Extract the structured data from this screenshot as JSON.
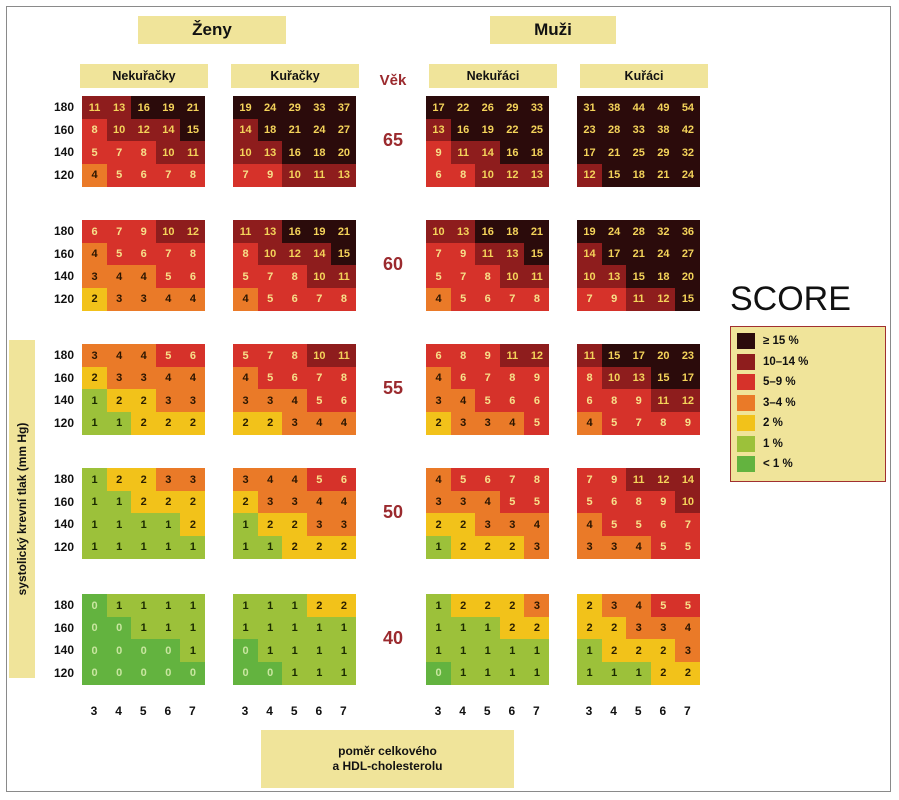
{
  "headers": {
    "women": "Ženy",
    "men": "Muži",
    "women_nonsmoker": "Nekuřačky",
    "women_smoker": "Kuřačky",
    "men_nonsmoker": "Nekuřáci",
    "men_smoker": "Kuřáci",
    "age_label": "Věk"
  },
  "legend": {
    "title": "SCORE",
    "items": [
      {
        "label": "≥ 15 %",
        "color": "#2b0b0b"
      },
      {
        "label": "10–14 %",
        "color": "#8e1d1d"
      },
      {
        "label": "5–9 %",
        "color": "#d6322a"
      },
      {
        "label": "3–4 %",
        "color": "#ea7a28"
      },
      {
        "label": "2 %",
        "color": "#f2c21a"
      },
      {
        "label": "1 %",
        "color": "#9cc13a"
      },
      {
        "label": "< 1 %",
        "color": "#63b33f"
      }
    ]
  },
  "axes": {
    "ylabel": "systolický krevní tlak (mm Hg)",
    "xlabel_line1": "poměr celkového",
    "xlabel_line2": "a HDL-cholesterolu"
  },
  "chart_data": {
    "type": "heatmap",
    "title": "SCORE",
    "x_ticks": [
      "3",
      "4",
      "5",
      "6",
      "7"
    ],
    "y_ticks": [
      "180",
      "160",
      "140",
      "120"
    ],
    "ages": [
      "65",
      "60",
      "55",
      "50",
      "40"
    ],
    "groups": [
      "women_nonsmoker",
      "women_smoker",
      "men_nonsmoker",
      "men_smoker"
    ],
    "values": {
      "65": {
        "women_nonsmoker": [
          [
            11,
            13,
            16,
            19,
            21
          ],
          [
            8,
            10,
            12,
            14,
            15
          ],
          [
            5,
            7,
            8,
            10,
            11
          ],
          [
            4,
            5,
            6,
            7,
            8
          ]
        ],
        "women_smoker": [
          [
            19,
            24,
            29,
            33,
            37
          ],
          [
            14,
            18,
            21,
            24,
            27
          ],
          [
            10,
            13,
            16,
            18,
            20
          ],
          [
            7,
            9,
            10,
            11,
            13
          ]
        ],
        "men_nonsmoker": [
          [
            17,
            22,
            26,
            29,
            33
          ],
          [
            13,
            16,
            19,
            22,
            25
          ],
          [
            9,
            11,
            14,
            16,
            18
          ],
          [
            6,
            8,
            10,
            12,
            13
          ]
        ],
        "men_smoker": [
          [
            31,
            38,
            44,
            49,
            54
          ],
          [
            23,
            28,
            33,
            38,
            42
          ],
          [
            17,
            21,
            25,
            29,
            32
          ],
          [
            12,
            15,
            18,
            21,
            24
          ]
        ]
      },
      "60": {
        "women_nonsmoker": [
          [
            6,
            7,
            9,
            10,
            12
          ],
          [
            4,
            5,
            6,
            7,
            8
          ],
          [
            3,
            4,
            4,
            5,
            6
          ],
          [
            2,
            3,
            3,
            4,
            4
          ]
        ],
        "women_smoker": [
          [
            11,
            13,
            16,
            19,
            21
          ],
          [
            8,
            10,
            12,
            14,
            15
          ],
          [
            5,
            7,
            8,
            10,
            11
          ],
          [
            4,
            5,
            6,
            7,
            8
          ]
        ],
        "men_nonsmoker": [
          [
            10,
            13,
            16,
            18,
            21
          ],
          [
            7,
            9,
            11,
            13,
            15
          ],
          [
            5,
            7,
            8,
            10,
            11
          ],
          [
            4,
            5,
            6,
            7,
            8
          ]
        ],
        "men_smoker": [
          [
            19,
            24,
            28,
            32,
            36
          ],
          [
            14,
            17,
            21,
            24,
            27
          ],
          [
            10,
            13,
            15,
            18,
            20
          ],
          [
            7,
            9,
            11,
            12,
            15
          ]
        ]
      },
      "55": {
        "women_nonsmoker": [
          [
            3,
            4,
            4,
            5,
            6
          ],
          [
            2,
            3,
            3,
            4,
            4
          ],
          [
            1,
            2,
            2,
            3,
            3
          ],
          [
            1,
            1,
            2,
            2,
            2
          ]
        ],
        "women_smoker": [
          [
            5,
            7,
            8,
            10,
            11
          ],
          [
            4,
            5,
            6,
            7,
            8
          ],
          [
            3,
            3,
            4,
            5,
            6
          ],
          [
            2,
            2,
            3,
            4,
            4
          ]
        ],
        "men_nonsmoker": [
          [
            6,
            8,
            9,
            11,
            12
          ],
          [
            4,
            6,
            7,
            8,
            9
          ],
          [
            3,
            4,
            5,
            6,
            6
          ],
          [
            2,
            3,
            3,
            4,
            5
          ]
        ],
        "men_smoker": [
          [
            11,
            15,
            17,
            20,
            23
          ],
          [
            8,
            10,
            13,
            15,
            17
          ],
          [
            6,
            8,
            9,
            11,
            12
          ],
          [
            4,
            5,
            7,
            8,
            9
          ]
        ]
      },
      "50": {
        "women_nonsmoker": [
          [
            1,
            2,
            2,
            3,
            3
          ],
          [
            1,
            1,
            2,
            2,
            2
          ],
          [
            1,
            1,
            1,
            1,
            2
          ],
          [
            1,
            1,
            1,
            1,
            1
          ]
        ],
        "women_smoker": [
          [
            3,
            4,
            4,
            5,
            6
          ],
          [
            2,
            3,
            3,
            4,
            4
          ],
          [
            1,
            2,
            2,
            3,
            3
          ],
          [
            1,
            1,
            2,
            2,
            2
          ]
        ],
        "men_nonsmoker": [
          [
            4,
            5,
            6,
            7,
            8
          ],
          [
            3,
            3,
            4,
            5,
            5
          ],
          [
            2,
            2,
            3,
            3,
            4
          ],
          [
            1,
            2,
            2,
            2,
            3
          ]
        ],
        "men_smoker": [
          [
            7,
            9,
            11,
            12,
            14
          ],
          [
            5,
            6,
            8,
            9,
            10
          ],
          [
            4,
            5,
            5,
            6,
            7
          ],
          [
            3,
            3,
            4,
            5,
            5
          ]
        ]
      },
      "40": {
        "women_nonsmoker": [
          [
            0,
            1,
            1,
            1,
            1
          ],
          [
            0,
            0,
            1,
            1,
            1
          ],
          [
            0,
            0,
            0,
            0,
            1
          ],
          [
            0,
            0,
            0,
            0,
            0
          ]
        ],
        "women_smoker": [
          [
            1,
            1,
            1,
            2,
            2
          ],
          [
            1,
            1,
            1,
            1,
            1
          ],
          [
            0,
            1,
            1,
            1,
            1
          ],
          [
            0,
            0,
            1,
            1,
            1
          ]
        ],
        "men_nonsmoker": [
          [
            1,
            2,
            2,
            2,
            3
          ],
          [
            1,
            1,
            1,
            2,
            2
          ],
          [
            1,
            1,
            1,
            1,
            1
          ],
          [
            0,
            1,
            1,
            1,
            1
          ]
        ],
        "men_smoker": [
          [
            2,
            3,
            4,
            5,
            5
          ],
          [
            2,
            2,
            3,
            3,
            4
          ],
          [
            1,
            2,
            2,
            2,
            3
          ],
          [
            1,
            1,
            1,
            2,
            2
          ]
        ]
      }
    }
  }
}
